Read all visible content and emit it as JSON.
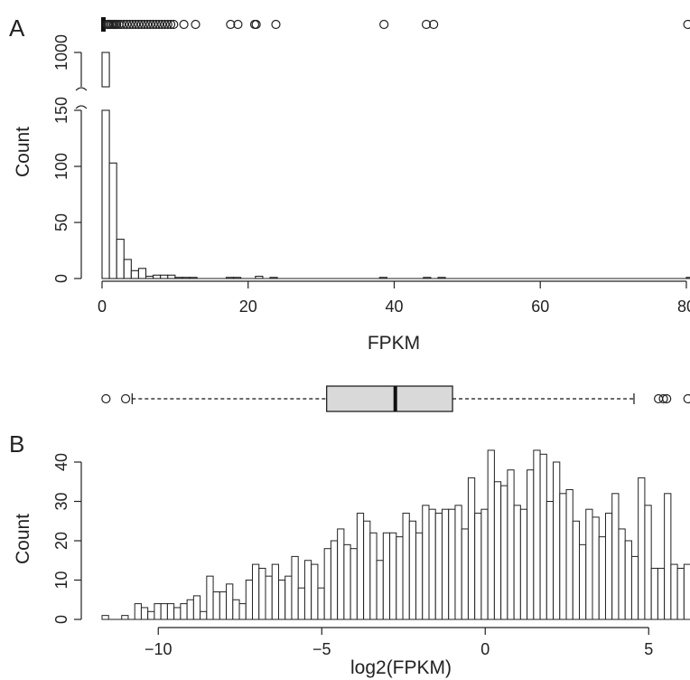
{
  "chart_data": [
    {
      "panel_label": "A",
      "type": "bar",
      "xlabel": "FPKM",
      "ylabel": "Count",
      "xlim": [
        0,
        80
      ],
      "x_ticks": [
        "0",
        "20",
        "40",
        "60",
        "80"
      ],
      "y_ticks": [
        "0",
        "50",
        "100",
        "150",
        "1000"
      ],
      "axis_break": {
        "below": 150,
        "resumes_at": 1000
      },
      "bin_width": 1,
      "bins": [
        {
          "x0": 0,
          "x1": 1,
          "count": 1000
        },
        {
          "x0": 1,
          "x1": 2,
          "count": 103
        },
        {
          "x0": 2,
          "x1": 3,
          "count": 35
        },
        {
          "x0": 3,
          "x1": 4,
          "count": 17
        },
        {
          "x0": 4,
          "x1": 5,
          "count": 7
        },
        {
          "x0": 5,
          "x1": 6,
          "count": 9
        },
        {
          "x0": 6,
          "x1": 7,
          "count": 2
        },
        {
          "x0": 7,
          "x1": 8,
          "count": 3
        },
        {
          "x0": 8,
          "x1": 9,
          "count": 3
        },
        {
          "x0": 9,
          "x1": 10,
          "count": 3
        },
        {
          "x0": 10,
          "x1": 11,
          "count": 1
        },
        {
          "x0": 11,
          "x1": 12,
          "count": 1
        },
        {
          "x0": 12,
          "x1": 13,
          "count": 1
        },
        {
          "x0": 17,
          "x1": 18,
          "count": 1
        },
        {
          "x0": 18,
          "x1": 19,
          "count": 1
        },
        {
          "x0": 21,
          "x1": 22,
          "count": 2
        },
        {
          "x0": 23,
          "x1": 24,
          "count": 1
        },
        {
          "x0": 38,
          "x1": 39,
          "count": 1
        },
        {
          "x0": 44,
          "x1": 45,
          "count": 1
        },
        {
          "x0": 46,
          "x1": 47,
          "count": 1
        },
        {
          "x0": 80,
          "x1": 81,
          "count": 1
        }
      ],
      "boxplot": {
        "whisker_high": 0.6,
        "outliers": [
          0.7,
          0.8,
          0.9,
          1.0,
          1.2,
          1.4,
          1.6,
          1.8,
          2.0,
          2.3,
          2.6,
          3.0,
          3.4,
          3.8,
          4.2,
          4.6,
          5.0,
          5.4,
          5.8,
          6.2,
          6.6,
          7.0,
          7.4,
          7.8,
          8.2,
          8.6,
          9.0,
          9.4,
          9.8,
          11.2,
          12.8,
          17.6,
          18.6,
          20.9,
          21.1,
          23.8,
          38.6,
          44.4,
          45.4,
          80.2
        ]
      }
    },
    {
      "panel_label": "B",
      "type": "bar",
      "xlabel": "log2(FPKM)",
      "ylabel": "Count",
      "xlim": [
        -11.72,
        6.22
      ],
      "ylim": [
        0,
        43
      ],
      "x_ticks": [
        "−10",
        "−5",
        "0",
        "5"
      ],
      "y_ticks": [
        "0",
        "10",
        "20",
        "30",
        "40"
      ],
      "bin_start": -11.72,
      "bin_width": 0.2,
      "counts": [
        1,
        0,
        0,
        1,
        0,
        4,
        3,
        2,
        4,
        4,
        4,
        3,
        4,
        5,
        6,
        2,
        11,
        7,
        7,
        9,
        5,
        4,
        10,
        14,
        13,
        11,
        14,
        10,
        11,
        16,
        8,
        15,
        14,
        8,
        18,
        20,
        23,
        19,
        18,
        27,
        25,
        22,
        15,
        22,
        22,
        21,
        27,
        25,
        22,
        29,
        28,
        27,
        28,
        28,
        29,
        23,
        36,
        27,
        28,
        43,
        35,
        34,
        38,
        29,
        28,
        38,
        43,
        42,
        30,
        40,
        32,
        33,
        25,
        19,
        28,
        26,
        21,
        27,
        32,
        23,
        20,
        16,
        36,
        29,
        13,
        13,
        32,
        14,
        13,
        14,
        8,
        19,
        14,
        13,
        9,
        8,
        3,
        7,
        5,
        3,
        4,
        4,
        1,
        2,
        0,
        1,
        3,
        1,
        3,
        0,
        0,
        0,
        1,
        2,
        1,
        0,
        1,
        0,
        0,
        1
      ],
      "boxplot": {
        "whisker_low": -10.8,
        "q1": -4.85,
        "median": -2.75,
        "q3": -1.0,
        "whisker_high": 4.55,
        "outliers": [
          -11.6,
          -11.0,
          5.3,
          5.45,
          5.55,
          6.2
        ]
      }
    }
  ]
}
